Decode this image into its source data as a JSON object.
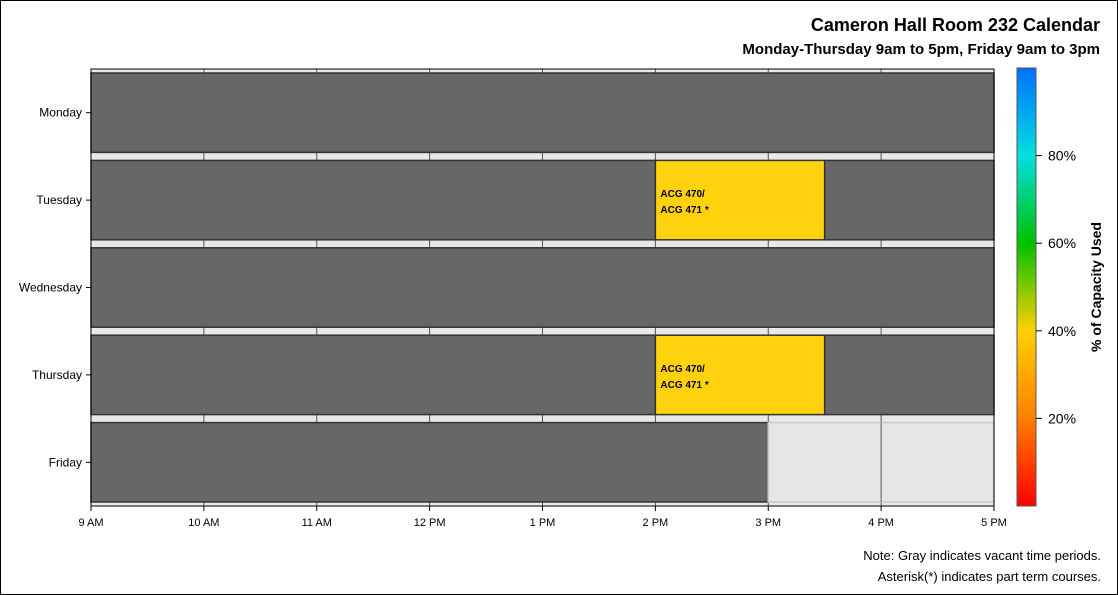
{
  "title": "Cameron Hall Room 232 Calendar",
  "subtitle": "Monday-Thursday 9am to 5pm, Friday 9am to 3pm",
  "notes": [
    "Note: Gray indicates vacant time periods.",
    "Asterisk(*) indicates part term courses."
  ],
  "chart_data": {
    "type": "heatmap",
    "days": [
      "Monday",
      "Tuesday",
      "Wednesday",
      "Thursday",
      "Friday"
    ],
    "x_ticks": [
      "9 AM",
      "10 AM",
      "11 AM",
      "12 PM",
      "1 PM",
      "2 PM",
      "3 PM",
      "4 PM",
      "5 PM"
    ],
    "x_range_hours": [
      9,
      17
    ],
    "grid": true,
    "colorbar": {
      "label": "% of Capacity Used",
      "ticks": [
        "20%",
        "40%",
        "60%",
        "80%"
      ],
      "tick_values": [
        20,
        40,
        60,
        80
      ],
      "range": [
        0,
        100
      ],
      "colors": [
        "#ff0000",
        "#ff7f00",
        "#ffd000",
        "#00c000",
        "#00e0e0",
        "#0070ff"
      ]
    },
    "colors": {
      "vacant": "#676767",
      "unavailable": "#e6e6e6",
      "occupied": "#ffd20d"
    },
    "blocks": [
      {
        "day": "Monday",
        "start": 9,
        "end": 17,
        "status": "vacant"
      },
      {
        "day": "Tuesday",
        "start": 9,
        "end": 14,
        "status": "vacant"
      },
      {
        "day": "Tuesday",
        "start": 14,
        "end": 15.5,
        "status": "occupied",
        "label_lines": [
          "ACG 470/",
          "ACG 471 *"
        ]
      },
      {
        "day": "Tuesday",
        "start": 15.5,
        "end": 17,
        "status": "vacant"
      },
      {
        "day": "Wednesday",
        "start": 9,
        "end": 17,
        "status": "vacant"
      },
      {
        "day": "Thursday",
        "start": 9,
        "end": 14,
        "status": "vacant"
      },
      {
        "day": "Thursday",
        "start": 14,
        "end": 15.5,
        "status": "occupied",
        "label_lines": [
          "ACG 470/",
          "ACG 471 *"
        ]
      },
      {
        "day": "Thursday",
        "start": 15.5,
        "end": 17,
        "status": "vacant"
      },
      {
        "day": "Friday",
        "start": 9,
        "end": 15,
        "status": "vacant"
      },
      {
        "day": "Friday",
        "start": 15,
        "end": 17,
        "status": "unavailable"
      }
    ]
  }
}
